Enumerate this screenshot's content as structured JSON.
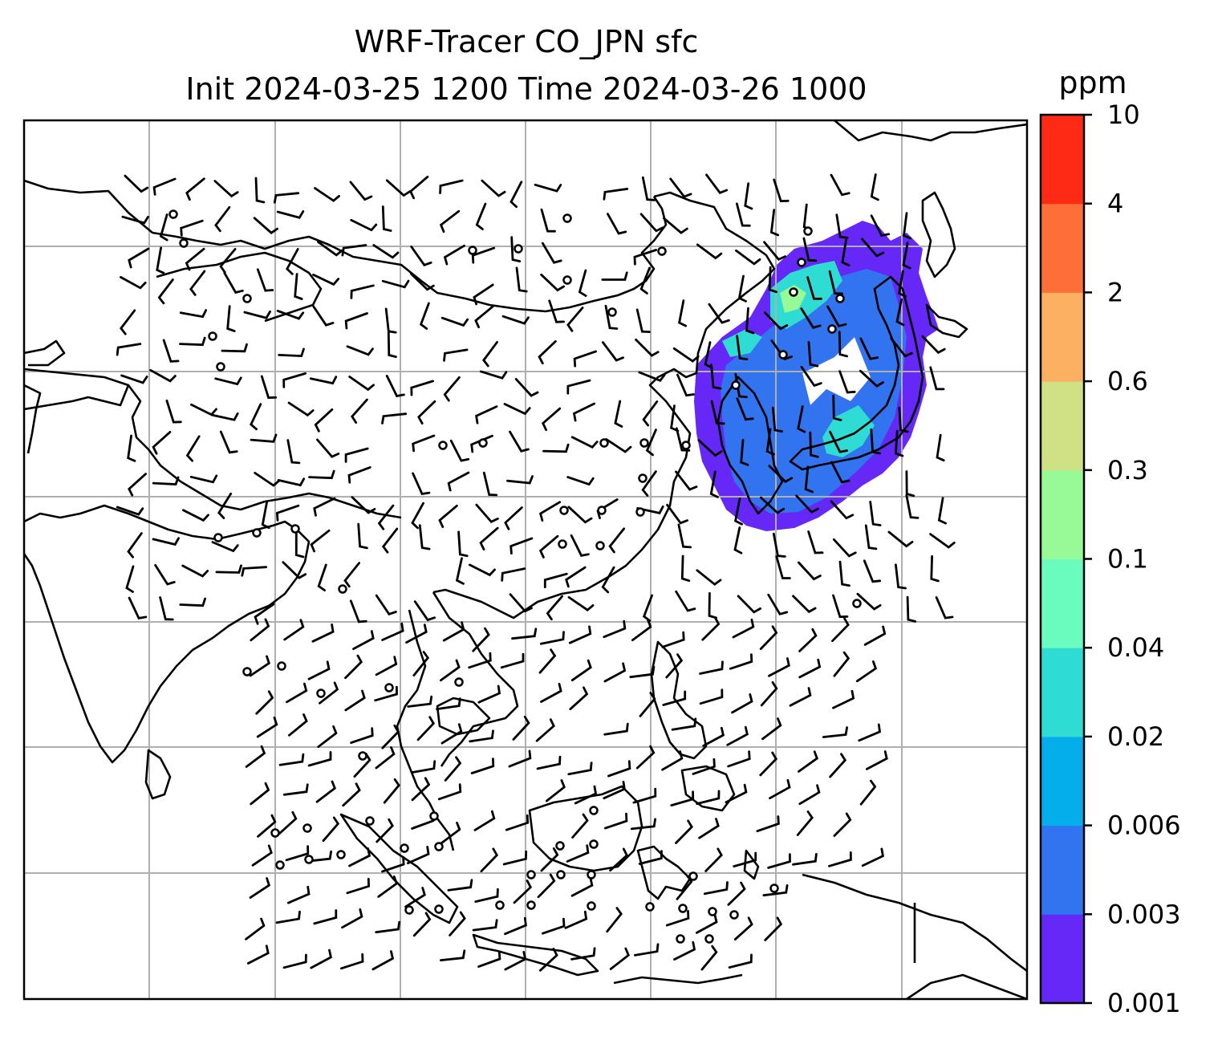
{
  "title": {
    "line1": "WRF-Tracer CO_JPN sfc",
    "line2": "Init 2024-03-25 1200 Time 2024-03-26 1000"
  },
  "colorbar": {
    "unit": "ppm",
    "levels": [
      "0.001",
      "0.003",
      "0.006",
      "0.02",
      "0.04",
      "0.1",
      "0.3",
      "0.6",
      "2",
      "4",
      "10"
    ],
    "colors": [
      "#6528f7",
      "#3273f0",
      "#03aeea",
      "#2fdcd4",
      "#6afcbf",
      "#98fa96",
      "#d0e084",
      "#fcb062",
      "#fe6e39",
      "#fe2a15"
    ]
  },
  "map": {
    "gridlines": true,
    "field_color_main": "#6528f7",
    "field_color_inner": "#3273f0",
    "field_color_high": "#2fdcd4",
    "field_color_peak": "#98fa96"
  }
}
